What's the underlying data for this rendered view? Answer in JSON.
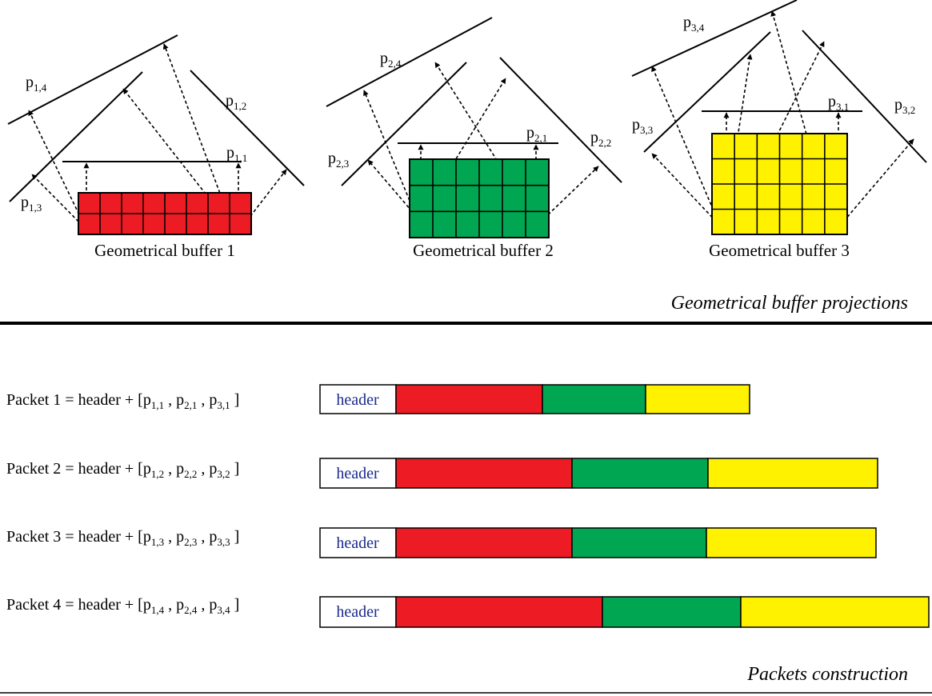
{
  "colors": {
    "buffer_1": "#ed1c24",
    "buffer_2": "#00a651",
    "buffer_3": "#fff200",
    "header_fill": "#ffffff",
    "header_text": "#1a2a8c"
  },
  "buffers": [
    {
      "caption": "Geometrical buffer 1",
      "color_key": "buffer_1",
      "grid": {
        "cols": 8,
        "rows": 2
      },
      "projections": [
        {
          "base": "p",
          "sub": "1,1"
        },
        {
          "base": "p",
          "sub": "1,2"
        },
        {
          "base": "p",
          "sub": "1,3"
        },
        {
          "base": "p",
          "sub": "1,4"
        }
      ]
    },
    {
      "caption": "Geometrical buffer 2",
      "color_key": "buffer_2",
      "grid": {
        "cols": 6,
        "rows": 3
      },
      "projections": [
        {
          "base": "p",
          "sub": "2,1"
        },
        {
          "base": "p",
          "sub": "2,2"
        },
        {
          "base": "p",
          "sub": "2,3"
        },
        {
          "base": "p",
          "sub": "2,4"
        }
      ]
    },
    {
      "caption": "Geometrical buffer 3",
      "color_key": "buffer_3",
      "grid": {
        "cols": 6,
        "rows": 4
      },
      "projections": [
        {
          "base": "p",
          "sub": "3,1"
        },
        {
          "base": "p",
          "sub": "3,2"
        },
        {
          "base": "p",
          "sub": "3,3"
        },
        {
          "base": "p",
          "sub": "3,4"
        }
      ]
    }
  ],
  "section_titles": {
    "projections": "Geometrical buffer projections",
    "packets": "Packets construction"
  },
  "packet_text": {
    "header": "header",
    "equals_header_plus": " = header + [",
    "separator": " , ",
    "close_bracket": " ]"
  },
  "packets": [
    {
      "name": "Packet 1",
      "terms": [
        {
          "base": "p",
          "sub": "1,1"
        },
        {
          "base": "p",
          "sub": "2,1"
        },
        {
          "base": "p",
          "sub": "3,1"
        }
      ],
      "segments": [
        {
          "color_key": "buffer_1",
          "size": 183
        },
        {
          "color_key": "buffer_2",
          "size": 129
        },
        {
          "color_key": "buffer_3",
          "size": 130
        }
      ]
    },
    {
      "name": "Packet 2",
      "terms": [
        {
          "base": "p",
          "sub": "1,2"
        },
        {
          "base": "p",
          "sub": "2,2"
        },
        {
          "base": "p",
          "sub": "3,2"
        }
      ],
      "segments": [
        {
          "color_key": "buffer_1",
          "size": 220
        },
        {
          "color_key": "buffer_2",
          "size": 170
        },
        {
          "color_key": "buffer_3",
          "size": 212
        }
      ]
    },
    {
      "name": "Packet 3",
      "terms": [
        {
          "base": "p",
          "sub": "1,3"
        },
        {
          "base": "p",
          "sub": "2,3"
        },
        {
          "base": "p",
          "sub": "3,3"
        }
      ],
      "segments": [
        {
          "color_key": "buffer_1",
          "size": 220
        },
        {
          "color_key": "buffer_2",
          "size": 168
        },
        {
          "color_key": "buffer_3",
          "size": 212
        }
      ]
    },
    {
      "name": "Packet 4",
      "terms": [
        {
          "base": "p",
          "sub": "1,4"
        },
        {
          "base": "p",
          "sub": "2,4"
        },
        {
          "base": "p",
          "sub": "3,4"
        }
      ],
      "segments": [
        {
          "color_key": "buffer_1",
          "size": 258
        },
        {
          "color_key": "buffer_2",
          "size": 173
        },
        {
          "color_key": "buffer_3",
          "size": 235
        }
      ]
    }
  ]
}
